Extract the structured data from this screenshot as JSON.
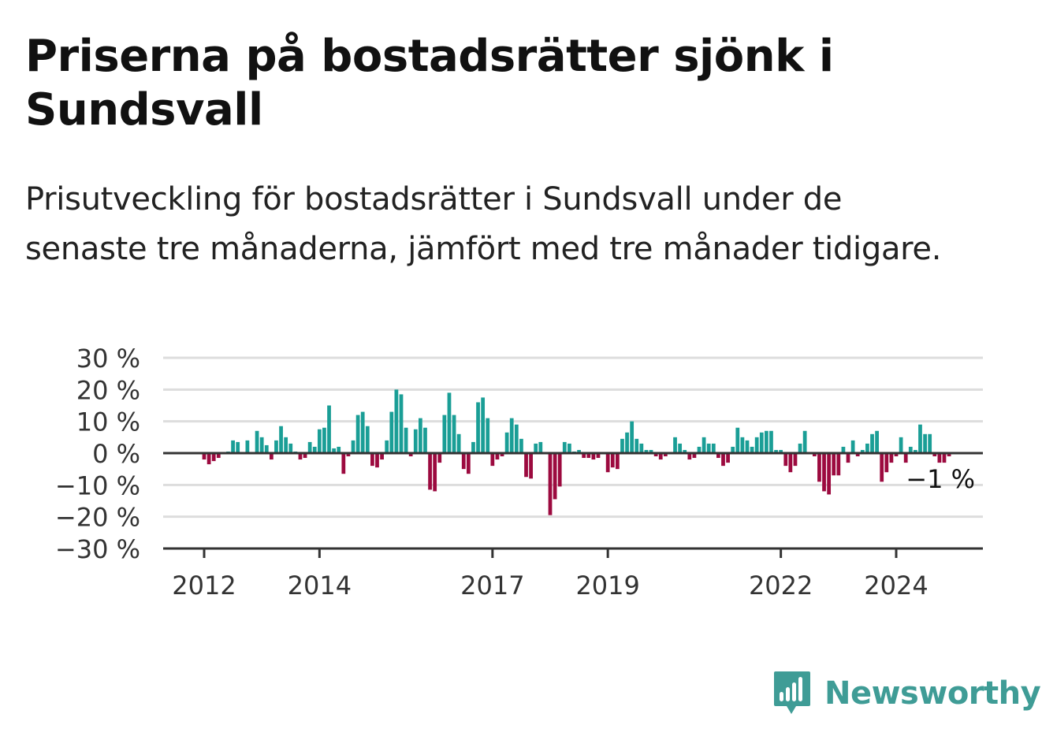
{
  "title": "Priserna på bostadsrätter sjönk i Sundsvall",
  "subtitle": "Prisutveckling för bostadsrätter i Sundsvall under de senaste tre månaderna, jämfört med tre månader tidigare.",
  "brand": {
    "name": "Newsworthy",
    "color": "#3f9c96"
  },
  "chart_data": {
    "type": "bar",
    "unit": "%",
    "ylim": [
      -30,
      30
    ],
    "y_ticks": [
      30,
      20,
      10,
      0,
      -10,
      -20,
      -30
    ],
    "y_tick_labels": [
      "30 %",
      "20 %",
      "10 %",
      "0 %",
      "−10 %",
      "−20 %",
      "−30 %"
    ],
    "x_tick_labels": [
      "2012",
      "2014",
      "2017",
      "2019",
      "2022",
      "2024"
    ],
    "x_ticks_years": [
      2012,
      2014,
      2017,
      2019,
      2022,
      2024
    ],
    "start_month": "2011-12",
    "end_month": "2024-09",
    "grid": true,
    "colors": {
      "positive": "#1a9e96",
      "negative": "#9c0a3f",
      "grid": "#dddddd",
      "axis": "#333333"
    },
    "annotation": "−1 %",
    "values": [
      0,
      -2,
      -3.5,
      -2.5,
      -1.5,
      0,
      0.5,
      4,
      3.5,
      0,
      4,
      0,
      7,
      5,
      2.5,
      -2,
      4,
      8.5,
      5,
      3,
      0.5,
      -2,
      -1.5,
      3.5,
      2,
      7.5,
      8,
      15,
      1.5,
      2,
      -6.5,
      -1,
      4,
      12,
      13,
      8.5,
      -4,
      -4.5,
      -2,
      4,
      13,
      20,
      18.5,
      8,
      -1,
      7.5,
      11,
      8,
      -11.5,
      -12,
      -3,
      12,
      19,
      12,
      6,
      -5,
      -6.5,
      3.5,
      16,
      17.5,
      11,
      -4,
      -2,
      -1,
      6.5,
      11,
      9,
      4.5,
      -7.5,
      -8,
      3,
      3.5,
      0,
      -19.5,
      -14.5,
      -10.5,
      3.5,
      3,
      0.5,
      1,
      -1.5,
      -1.5,
      -2,
      -1.5,
      0,
      -6,
      -4.5,
      -5,
      4.5,
      6.5,
      10,
      4.5,
      3,
      1,
      1,
      -1,
      -2,
      -1,
      0,
      5,
      3,
      1,
      -2,
      -1.5,
      2,
      5,
      3,
      3,
      -1.5,
      -4,
      -3,
      2,
      8,
      5,
      4,
      2,
      5,
      6.5,
      7,
      7,
      1,
      1,
      -4,
      -6,
      -4,
      3,
      7,
      0,
      -1,
      -9,
      -12,
      -13,
      -7,
      -7,
      2,
      -3,
      4,
      -1,
      1,
      3,
      6,
      7,
      -9,
      -6,
      -3,
      -1,
      5,
      -3,
      2,
      1,
      9,
      6,
      6,
      -1,
      -3,
      -3,
      -1
    ]
  }
}
